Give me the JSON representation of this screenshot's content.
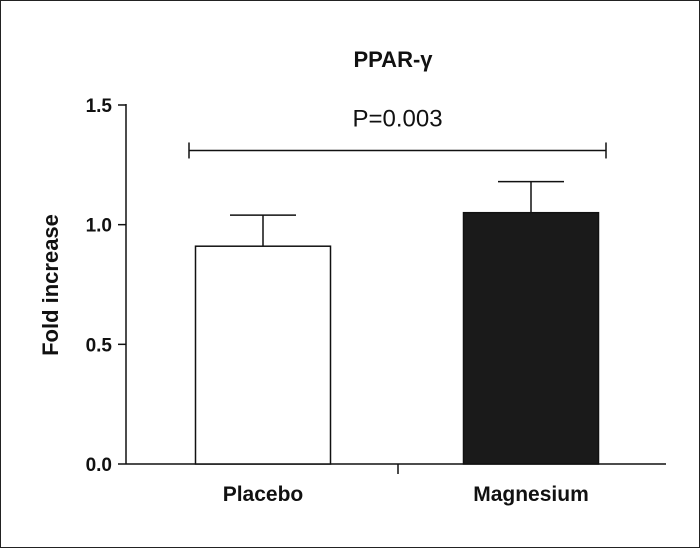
{
  "chart_data": {
    "type": "bar",
    "title": "PPAR-γ",
    "xlabel": "",
    "ylabel": "Fold increase",
    "categories": [
      "Placebo",
      "Magnesium"
    ],
    "values": [
      0.91,
      1.05
    ],
    "error": [
      0.13,
      0.13
    ],
    "bar_colors": [
      "#ffffff",
      "#1a1a1a"
    ],
    "ylim": [
      0,
      1.5
    ],
    "yticks": [
      "0.0",
      "0.5",
      "1.0",
      "1.5"
    ],
    "grid": false,
    "annotation": {
      "text": "P=0.003",
      "level": 1.31
    }
  }
}
